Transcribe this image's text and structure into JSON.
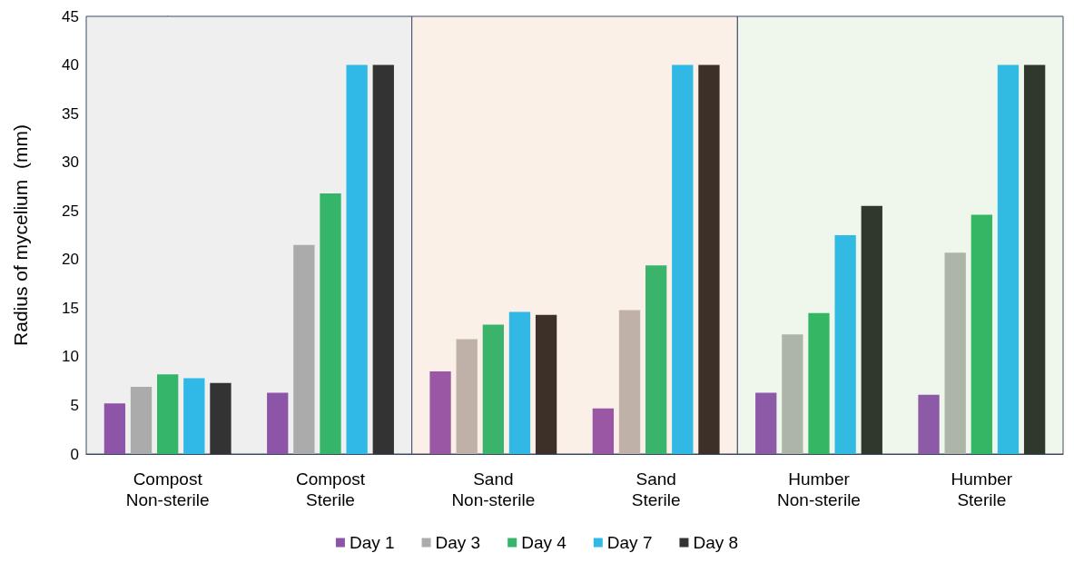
{
  "chart_data": {
    "type": "bar",
    "ylabel": "Radius of mycelium  (mm)",
    "categories": [
      "Compost\nNon-sterile",
      "Compost\nSterile",
      "Sand\nNon-sterile",
      "Sand\nSterile",
      "Humber\nNon-sterile",
      "Humber\nSterile"
    ],
    "series": [
      {
        "name": "Day 1",
        "color": "#8c55a8",
        "values": [
          5.2,
          6.3,
          8.5,
          4.7,
          6.3,
          6.1
        ],
        "colors": [
          "#8c55a8",
          "#8c55a8",
          "#9a58a4",
          "#9a58a4",
          "#8c5aa6",
          "#8c5aa6"
        ]
      },
      {
        "name": "Day 3",
        "color": "#ababab",
        "values": [
          6.9,
          21.5,
          11.8,
          14.8,
          12.3,
          20.7
        ],
        "colors": [
          "#ababab",
          "#ababab",
          "#bfb1a8",
          "#bfb1a8",
          "#adb4a8",
          "#adb4a8"
        ]
      },
      {
        "name": "Day 4",
        "color": "#35b56a",
        "values": [
          8.2,
          26.8,
          13.3,
          19.4,
          14.5,
          24.6
        ],
        "colors": [
          "#35b56a",
          "#35b56a",
          "#3ab46a",
          "#3ab46a",
          "#33b765",
          "#33b765"
        ]
      },
      {
        "name": "Day 7",
        "color": "#30b8e6",
        "values": [
          7.8,
          40,
          14.6,
          40,
          22.5,
          40
        ],
        "colors": [
          "#30b8e6",
          "#30b8e6",
          "#31b8e4",
          "#31b8e4",
          "#31bbe2",
          "#31bbe2"
        ]
      },
      {
        "name": "Day 8",
        "color": "#333333",
        "values": [
          7.3,
          40,
          14.3,
          40,
          25.5,
          40
        ],
        "colors": [
          "#333333",
          "#333333",
          "#3c3029",
          "#3c3029",
          "#2e392b",
          "#2e392b"
        ]
      }
    ],
    "bands": [
      {
        "axis": "x",
        "from": "Compost\nNon-sterile",
        "to": "Compost\nSterile",
        "color": "#efefef"
      },
      {
        "axis": "x",
        "from": "Sand\nNon-sterile",
        "to": "Sand\nSterile",
        "color": "#fbf0e8"
      },
      {
        "axis": "x",
        "from": "Humber\nNon-sterile",
        "to": "Humber\nSterile",
        "color": "#eff6ec"
      }
    ],
    "ylim": [
      0,
      45
    ],
    "yticks": [
      0,
      5,
      10,
      15,
      20,
      25,
      30,
      35,
      40,
      45
    ],
    "grid": false,
    "legend": "bottom"
  }
}
